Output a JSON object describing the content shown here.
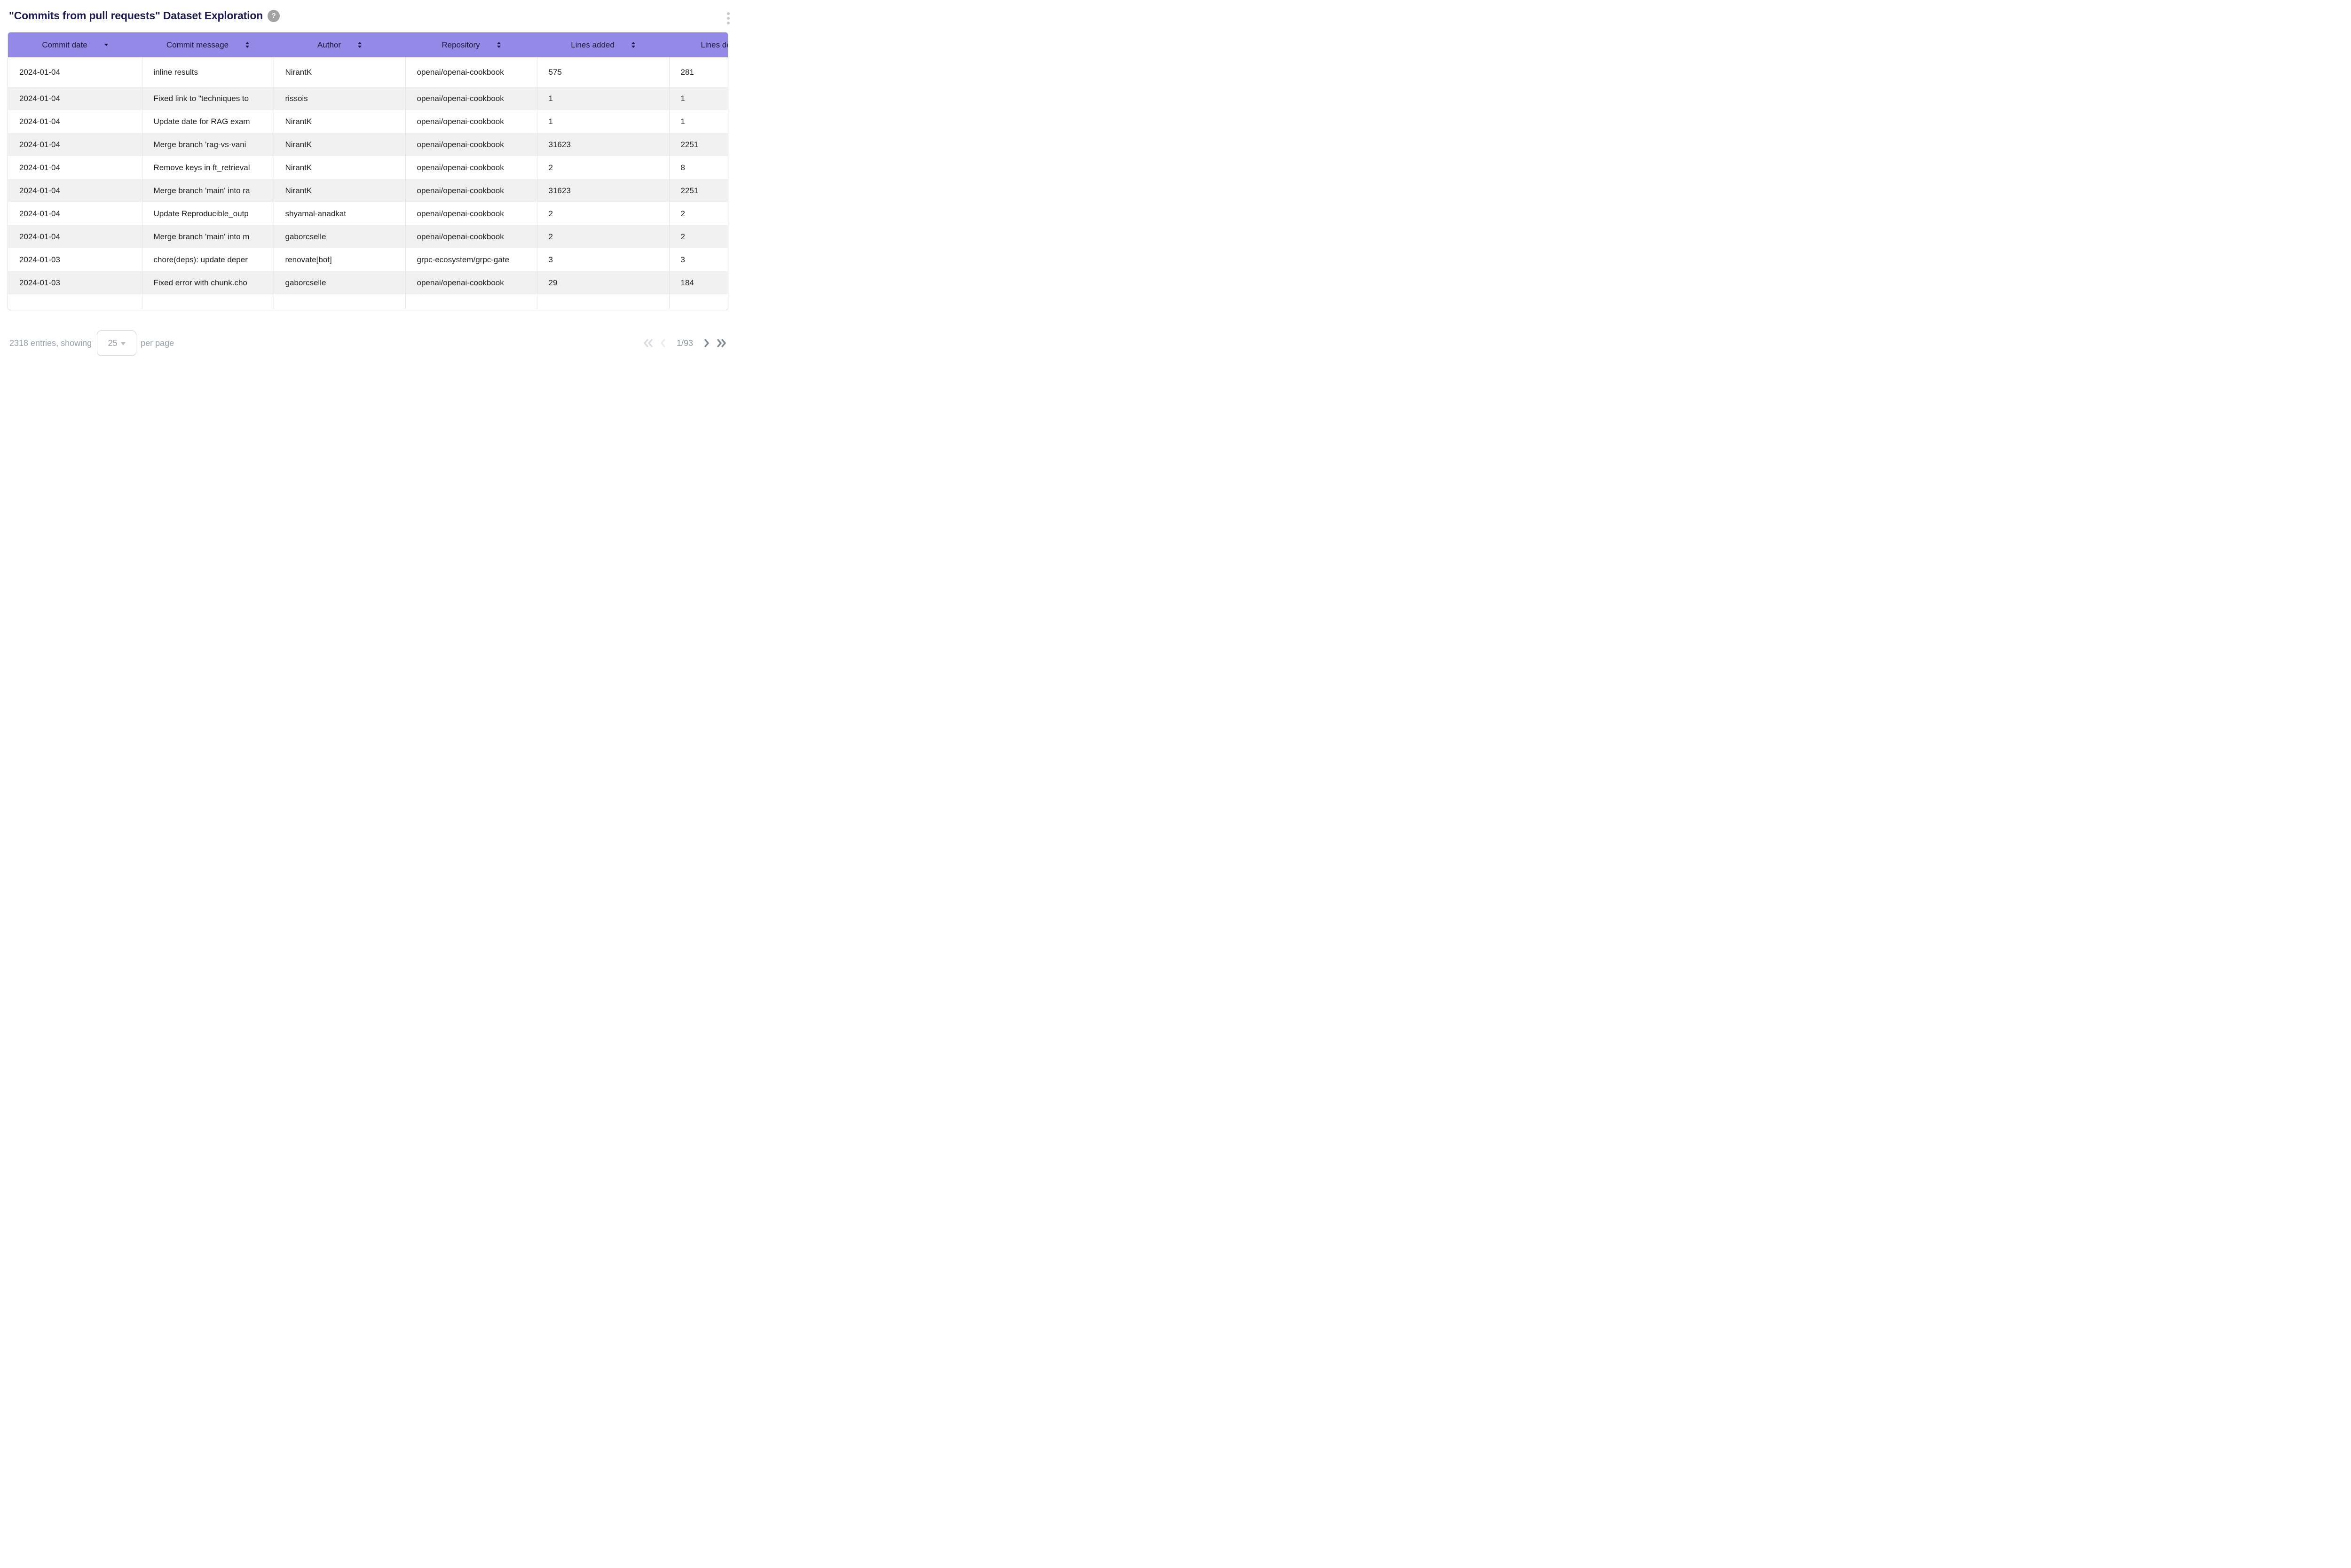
{
  "header": {
    "title": "\"Commits from pull requests\" Dataset Exploration",
    "help_glyph": "?"
  },
  "table": {
    "columns": [
      {
        "label": "Commit date",
        "sort": "desc"
      },
      {
        "label": "Commit message",
        "sort": "both"
      },
      {
        "label": "Author",
        "sort": "both"
      },
      {
        "label": "Repository",
        "sort": "both"
      },
      {
        "label": "Lines added",
        "sort": "both"
      },
      {
        "label": "Lines deleted",
        "sort": "both"
      }
    ],
    "rows": [
      {
        "date": "2024-01-04",
        "message": "inline results",
        "author": "NirantK",
        "repo": "openai/openai-cookbook",
        "added": "575",
        "deleted": "281"
      },
      {
        "date": "2024-01-04",
        "message": "Fixed link to \"techniques to",
        "author": "rissois",
        "repo": "openai/openai-cookbook",
        "added": "1",
        "deleted": "1"
      },
      {
        "date": "2024-01-04",
        "message": "Update date for RAG exam",
        "author": "NirantK",
        "repo": "openai/openai-cookbook",
        "added": "1",
        "deleted": "1"
      },
      {
        "date": "2024-01-04",
        "message": "Merge branch 'rag-vs-vani",
        "author": "NirantK",
        "repo": "openai/openai-cookbook",
        "added": "31623",
        "deleted": "2251"
      },
      {
        "date": "2024-01-04",
        "message": "Remove keys in ft_retrieval",
        "author": "NirantK",
        "repo": "openai/openai-cookbook",
        "added": "2",
        "deleted": "8"
      },
      {
        "date": "2024-01-04",
        "message": "Merge branch 'main' into ra",
        "author": "NirantK",
        "repo": "openai/openai-cookbook",
        "added": "31623",
        "deleted": "2251"
      },
      {
        "date": "2024-01-04",
        "message": "Update Reproducible_outp",
        "author": "shyamal-anadkat",
        "repo": "openai/openai-cookbook",
        "added": "2",
        "deleted": "2"
      },
      {
        "date": "2024-01-04",
        "message": "Merge branch 'main' into m",
        "author": "gaborcselle",
        "repo": "openai/openai-cookbook",
        "added": "2",
        "deleted": "2"
      },
      {
        "date": "2024-01-03",
        "message": "chore(deps): update deper",
        "author": "renovate[bot]",
        "repo": "grpc-ecosystem/grpc-gate",
        "added": "3",
        "deleted": "3"
      },
      {
        "date": "2024-01-03",
        "message": "Fixed error with chunk.cho",
        "author": "gaborcselle",
        "repo": "openai/openai-cookbook",
        "added": "29",
        "deleted": "184"
      }
    ]
  },
  "pagination": {
    "summary_prefix": "2318 entries, showing",
    "page_size": "25",
    "summary_suffix": "per page",
    "page_indicator": "1/93"
  },
  "colors": {
    "header-bg": "#9589e8",
    "stripe": "#f0f0f0",
    "title": "#1c1c52",
    "muted": "#9aa2ac"
  }
}
